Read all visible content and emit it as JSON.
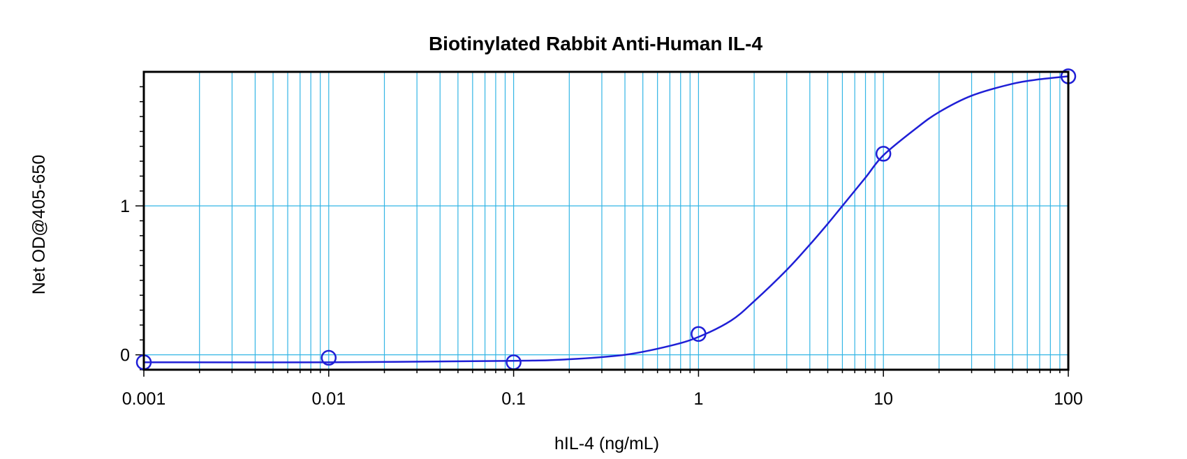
{
  "colors": {
    "grid": "#33b5e5",
    "curve": "#1f1fd6",
    "points": "#1f1fd6",
    "frame": "#000000",
    "background": "#ffffff"
  },
  "chart_data": {
    "type": "scatter",
    "title": "Biotinylated Rabbit Anti-Human IL-4",
    "xlabel": "hIL-4 (ng/mL)",
    "ylabel": "Net OD@405-650",
    "x_scale": "log",
    "xlim": [
      0.001,
      100
    ],
    "ylim": [
      -0.1,
      1.9
    ],
    "x_ticks": [
      {
        "value": 0.001,
        "label": "0.001"
      },
      {
        "value": 0.01,
        "label": "0.01"
      },
      {
        "value": 0.1,
        "label": "0.1"
      },
      {
        "value": 1,
        "label": "1"
      },
      {
        "value": 10,
        "label": "10"
      },
      {
        "value": 100,
        "label": "100"
      }
    ],
    "y_ticks": [
      {
        "value": 0,
        "label": "0"
      },
      {
        "value": 1,
        "label": "1"
      }
    ],
    "grid": true,
    "series": [
      {
        "kind": "points",
        "x": [
          0.001,
          0.01,
          0.1,
          1,
          10,
          100
        ],
        "y": [
          -0.05,
          -0.02,
          -0.05,
          0.14,
          1.35,
          1.87
        ]
      },
      {
        "kind": "fitted-curve",
        "x": [
          0.001,
          0.01,
          0.1,
          0.2,
          0.4,
          0.7,
          1,
          1.5,
          2,
          3,
          4,
          5,
          6,
          8,
          10,
          15,
          20,
          30,
          50,
          70,
          100
        ],
        "y": [
          -0.05,
          -0.05,
          -0.04,
          -0.03,
          0.0,
          0.06,
          0.12,
          0.23,
          0.36,
          0.57,
          0.74,
          0.88,
          1.0,
          1.19,
          1.34,
          1.52,
          1.63,
          1.74,
          1.82,
          1.85,
          1.87
        ]
      }
    ]
  }
}
